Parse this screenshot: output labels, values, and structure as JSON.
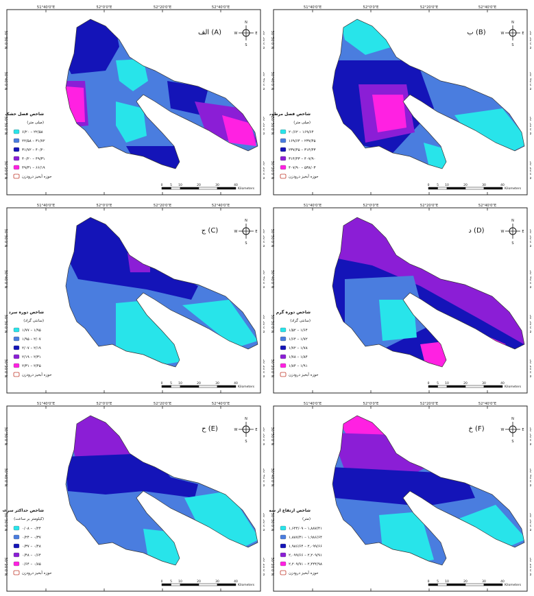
{
  "coords": {
    "lon": [
      "51°40'0\"E",
      "52°0'0\"E",
      "52°20'0\"E",
      "52°40'0\"E"
    ],
    "lat": [
      "30°50'0\"N",
      "30°40'0\"N",
      "30°30'0\"N",
      "30°20'0\"N"
    ]
  },
  "scale": {
    "ticks": [
      "0",
      "5",
      "10",
      "20",
      "30",
      "40"
    ],
    "unit": "Kilometers"
  },
  "compass": {
    "n": "N",
    "s": "S",
    "e": "E",
    "w": "W"
  },
  "basin_label": "حوزه آبخیز درودزن",
  "colors": [
    "#28e4ea",
    "#4a7ddf",
    "#1414b8",
    "#8b1ed6",
    "#ff21e2"
  ],
  "panels": [
    {
      "title": "الف (A)",
      "legend_title": "شاخص فصل خشک",
      "legend_unit": "(میلی متر)",
      "classes": [
        "۶/۲۰ – ۲۲/۵۸",
        "۲۲/۵۸ – ۳۱/۷۲",
        "۳۱/۷۲ – ۴۰/۲۰",
        "۴۰/۲۰ – ۴۹/۳۱",
        "۴۹/۳۱ – ۶۶/۱۹"
      ]
    },
    {
      "title": "ب (B)",
      "legend_title": "شاخص فصل مرطوب",
      "legend_unit": "(میلی متر)",
      "classes": [
        "۲۰/۶۲ – ۱۶۹/۶۴",
        "۱۶۹/۶۴ – ۲۳۷/۴۵",
        "۲۳۷/۴۵ – ۳۱۴/۴۳",
        "۳۱۴/۴۳ – ۴۰۷/۹۰",
        "۴۰۷/۹۰ – ۵۳۸/۰۳"
      ]
    },
    {
      "title": "ج (C)",
      "legend_title": "شاخص دوره سرد",
      "legend_unit": "(سانتی گراد)",
      "classes": [
        "۱/۷۷ – ۱/۹۵",
        "۱/۹۵ – ۲/۰۷",
        "۲/۰۷ – ۲/۱۹",
        "۲/۱۹ – ۲/۳۱",
        "۲/۳۱ – ۲/۴۵"
      ]
    },
    {
      "title": "د (D)",
      "legend_title": "شاخص دوره گرم",
      "legend_unit": "(سانتی گراد)",
      "classes": [
        "۱/۵۲ – ۱/۶۴",
        "۱/۶۴ – ۱/۷۲",
        "۱/۷۲ – ۱/۷۸",
        "۱/۷۸ – ۱/۸۴",
        "۱/۸۴ – ۱/۹۱"
      ]
    },
    {
      "title": "ح (E)",
      "legend_title": "شاخص حداکثر سرعت باد",
      "legend_unit": "(کیلومتر بر ساعت)",
      "classes": [
        "۰/۰۸ – ۰/۲۴",
        "۰/۲۴ – ۰/۳۷",
        "۰/۳۷ – ۰/۴۸",
        "۰/۴۸ – ۰/۶۴",
        "۰/۶۴ – ۰/۸۵"
      ]
    },
    {
      "title": "خ (F)",
      "legend_title": "شاخص ارتفاع از سطح دریا",
      "legend_unit": "(متر)",
      "classes": [
        "۱,۶۴۴/۰۹ – ۱,۸۸۷/۴۱",
        "۱,۸۸۷/۴۱ – ۱,۹۸۶/۶۴",
        "۱,۹۸۶/۶۴ – ۲,۰۹۹/۶۶",
        "۲,۰۹۹/۶۶ – ۲,۲۰۹/۹۱",
        "۲,۲۰۹/۹۱ – ۲,۴۴۴/۹۸"
      ]
    }
  ]
}
